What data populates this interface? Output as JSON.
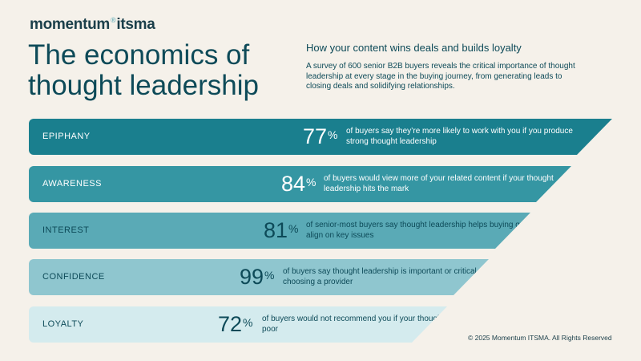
{
  "logo": {
    "brand": "momentum",
    "mark": "®",
    "suffix": "itsma"
  },
  "title": "The economics of thought leadership",
  "intro": {
    "heading": "How your content wins deals and builds loyalty",
    "body": "A survey of 600 senior B2B buyers reveals the critical importance of thought leadership at every stage in the buying journey, from generating leads to closing deals and solidifying relationships."
  },
  "stages": [
    {
      "label": "EPIPHANY",
      "value": "77",
      "unit": "%",
      "text": "of buyers say they’re more likely to work with you if you produce strong thought leadership"
    },
    {
      "label": "AWARENESS",
      "value": "84",
      "unit": "%",
      "text": "of buyers would view more of your related content if your thought leadership hits the mark"
    },
    {
      "label": "INTEREST",
      "value": "81",
      "unit": "%",
      "text": "of senior-most buyers say thought leadership helps buying groups align on key issues"
    },
    {
      "label": "CONFIDENCE",
      "value": "99",
      "unit": "%",
      "text": "of buyers say thought leadership is important or critical when choosing a provider"
    },
    {
      "label": "LOYALTY",
      "value": "72",
      "unit": "%",
      "text": "of buyers would not recommend you if your thought leadership is poor"
    }
  ],
  "colors": {
    "background": "#f5f1ea",
    "text": "#0d4a58",
    "band_1": "#1a7f8e",
    "band_2": "#3596a3",
    "band_3": "#5aaab6",
    "band_4": "#8fc6cf",
    "band_5": "#d4ebee"
  },
  "copyright": "© 2025 Momentum ITSMA. All Rights Reserved"
}
